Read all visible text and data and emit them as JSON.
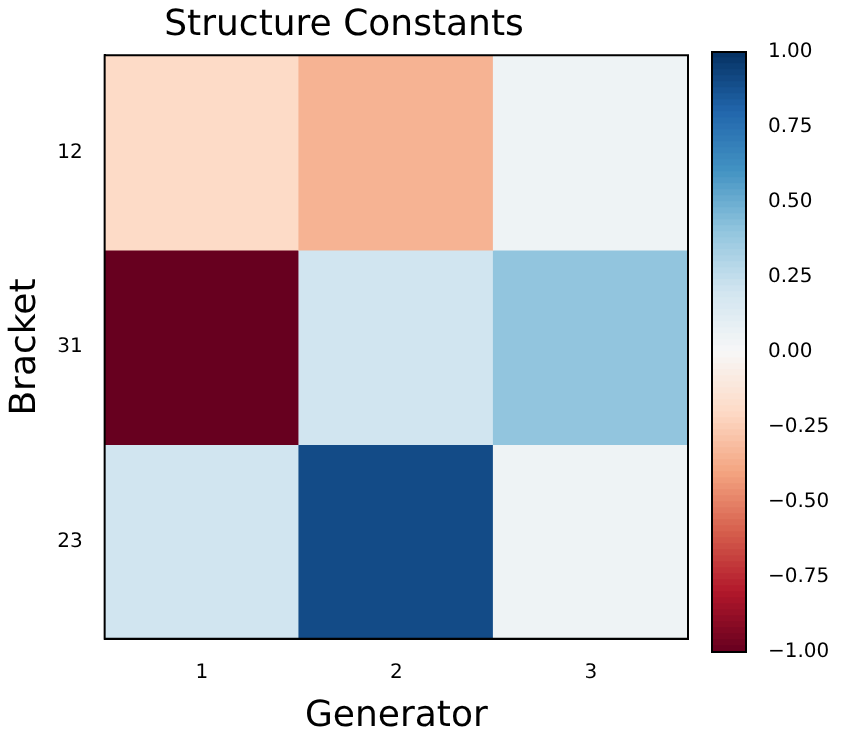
{
  "chart_data": {
    "type": "heatmap",
    "title": "Structure Constants",
    "xlabel": "Generator",
    "ylabel": "Bracket",
    "categories": [
      "1",
      "2",
      "3"
    ],
    "y_categories": [
      "12",
      "31",
      "23"
    ],
    "cells": [
      [
        -0.2,
        -0.35,
        0.05
      ],
      [
        -1,
        0.2,
        0.4
      ],
      [
        0.2,
        0.9,
        0.05
      ]
    ],
    "clim": [
      -1,
      1
    ],
    "cticks": [
      {
        "value": 1,
        "label": "1.00"
      },
      {
        "value": 0.75,
        "label": "0.75"
      },
      {
        "value": 0.5,
        "label": "0.50"
      },
      {
        "value": 0.25,
        "label": "0.25"
      },
      {
        "value": 0,
        "label": "0.00"
      },
      {
        "value": -0.25,
        "label": "−0.25"
      },
      {
        "value": -0.5,
        "label": "−0.50"
      },
      {
        "value": -0.75,
        "label": "−0.75"
      },
      {
        "value": -1,
        "label": "−1.00"
      }
    ]
  }
}
